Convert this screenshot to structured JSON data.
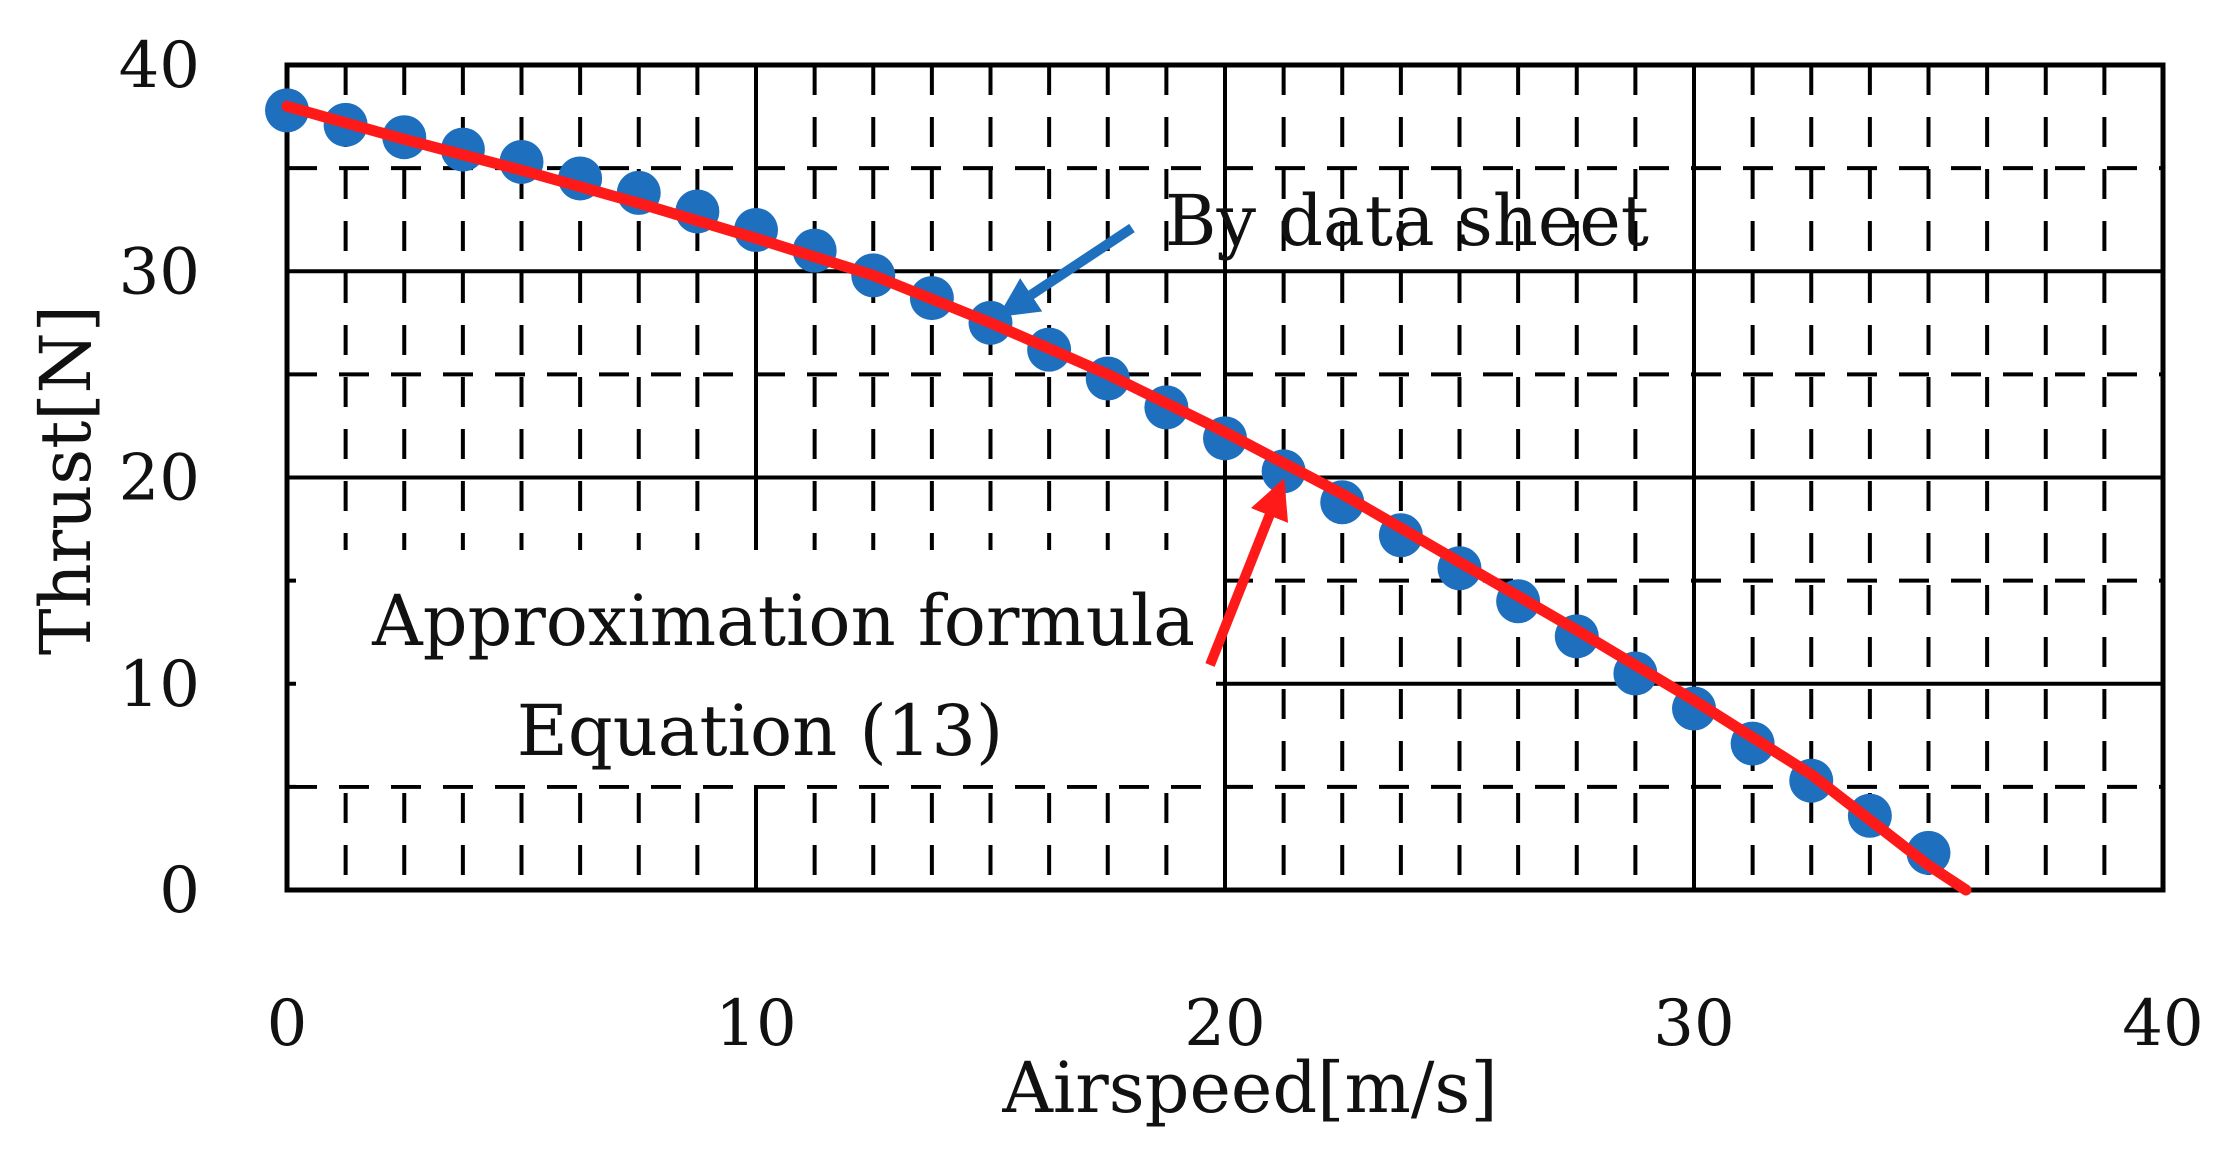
{
  "chart_data": {
    "type": "line",
    "title": "",
    "xlabel": "Airspeed[m/s]",
    "ylabel": "Thrust[N]",
    "xlim": [
      0,
      40
    ],
    "ylim": [
      0,
      40
    ],
    "x_major_ticks": [
      0,
      10,
      20,
      30,
      40
    ],
    "y_major_ticks": [
      0,
      10,
      20,
      30,
      40
    ],
    "x_tick_labels": [
      "0",
      "10",
      "20",
      "30",
      "40"
    ],
    "y_tick_labels": [
      "0",
      "10",
      "20",
      "30",
      "40"
    ],
    "x_minor_step": 1.25,
    "y_minor_step": 5,
    "grid": true,
    "series": [
      {
        "name": "By data sheet",
        "kind": "scatter",
        "color": "#1f6fbf",
        "x": [
          0,
          1.25,
          2.5,
          3.75,
          5,
          6.25,
          7.5,
          8.75,
          10,
          11.25,
          12.5,
          13.75,
          15,
          16.25,
          17.5,
          18.75,
          20,
          21.25,
          22.5,
          23.75,
          25,
          26.25,
          27.5,
          28.75,
          30,
          31.25,
          32.5,
          33.75,
          35
        ],
        "y": [
          37.8,
          37.1,
          36.5,
          35.9,
          35.3,
          34.5,
          33.8,
          32.9,
          32.0,
          31.0,
          29.8,
          28.7,
          27.5,
          26.2,
          24.8,
          23.4,
          21.9,
          20.3,
          18.8,
          17.2,
          15.6,
          14.0,
          12.3,
          10.5,
          8.8,
          7.1,
          5.3,
          3.6,
          1.8
        ]
      },
      {
        "name": "Approximation formula Equation (13)",
        "kind": "line",
        "color": "#ff1a1a",
        "x": [
          0,
          2.5,
          5,
          7.5,
          10,
          12.5,
          15,
          17.5,
          20,
          22.5,
          25,
          27.5,
          30,
          32.5,
          35,
          35.8
        ],
        "y": [
          38.0,
          36.4,
          34.9,
          33.3,
          31.6,
          29.8,
          27.5,
          25.0,
          22.2,
          19.2,
          15.9,
          12.6,
          9.2,
          5.6,
          1.2,
          0.0
        ]
      }
    ],
    "annotations": [
      {
        "name": "annotation-data-sheet",
        "text": "By data sheet",
        "color": "#1f6fbf",
        "point_to": [
          15.3,
          28.0
        ]
      },
      {
        "name": "annotation-approximation",
        "lines": [
          "Approximation formula",
          "Equation (13)"
        ],
        "color": "#ff1a1a",
        "point_to": [
          21.2,
          19.6
        ]
      }
    ]
  }
}
